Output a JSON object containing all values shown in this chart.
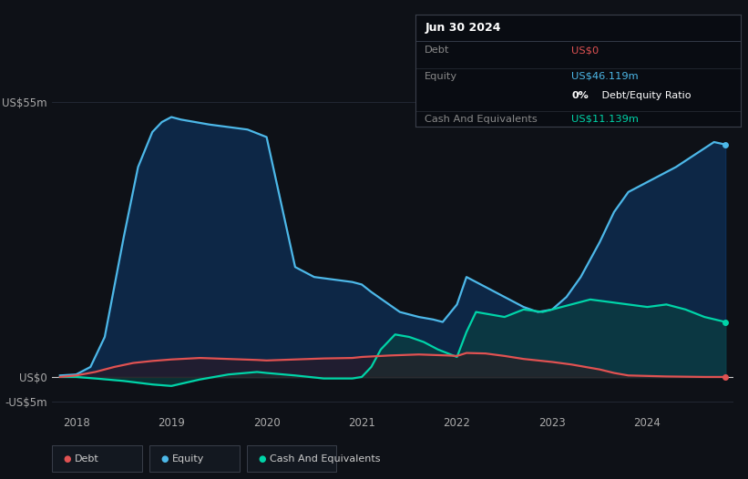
{
  "background_color": "#0e1117",
  "plot_bg_color": "#0e1117",
  "grid_color": "#252b38",
  "ylim": [
    -7,
    62
  ],
  "ytick_positions": [
    55,
    0,
    -5
  ],
  "ytick_labels": [
    "US$55m",
    "US$0",
    "-US$5m"
  ],
  "xticks": [
    2018,
    2019,
    2020,
    2021,
    2022,
    2023,
    2024
  ],
  "xlim_left": 2017.75,
  "xlim_right": 2024.9,
  "title_box": {
    "date": "Jun 30 2024",
    "debt_label": "Debt",
    "debt_value": "US$0",
    "debt_color": "#e05252",
    "equity_label": "Equity",
    "equity_value": "US$46.119m",
    "equity_color": "#4db8e8",
    "ratio_text": "0% Debt/Equity Ratio",
    "ratio_bold": "0%",
    "cash_label": "Cash And Equivalents",
    "cash_value": "US$11.139m",
    "cash_color": "#00d4a8",
    "box_bg": "#090c12",
    "text_color": "#888888",
    "title_text_color": "#ffffff"
  },
  "legend": {
    "debt_label": "Debt",
    "equity_label": "Equity",
    "cash_label": "Cash And Equivalents",
    "debt_color": "#e05252",
    "equity_color": "#4db8e8",
    "cash_color": "#00d4a8"
  },
  "equity_x": [
    2017.83,
    2018.0,
    2018.15,
    2018.3,
    2018.5,
    2018.65,
    2018.8,
    2018.9,
    2019.0,
    2019.1,
    2019.25,
    2019.4,
    2019.6,
    2019.8,
    2020.0,
    2020.15,
    2020.3,
    2020.5,
    2020.7,
    2020.9,
    2021.0,
    2021.1,
    2021.25,
    2021.4,
    2021.6,
    2021.75,
    2021.85,
    2022.0,
    2022.1,
    2022.2,
    2022.35,
    2022.5,
    2022.7,
    2022.85,
    2023.0,
    2023.15,
    2023.3,
    2023.5,
    2023.65,
    2023.8,
    2024.0,
    2024.15,
    2024.3,
    2024.5,
    2024.7,
    2024.82
  ],
  "equity_y": [
    0.3,
    0.5,
    2.0,
    8.0,
    28.0,
    42.0,
    49.0,
    51.0,
    52.0,
    51.5,
    51.0,
    50.5,
    50.0,
    49.5,
    48.0,
    35.0,
    22.0,
    20.0,
    19.5,
    19.0,
    18.5,
    17.0,
    15.0,
    13.0,
    12.0,
    11.5,
    11.0,
    14.5,
    20.0,
    19.0,
    17.5,
    16.0,
    14.0,
    13.0,
    13.5,
    16.0,
    20.0,
    27.0,
    33.0,
    37.0,
    39.0,
    40.5,
    42.0,
    44.5,
    47.0,
    46.5
  ],
  "cash_x": [
    2017.83,
    2018.0,
    2018.2,
    2018.5,
    2018.8,
    2019.0,
    2019.3,
    2019.6,
    2019.9,
    2020.0,
    2020.3,
    2020.6,
    2020.9,
    2021.0,
    2021.1,
    2021.2,
    2021.35,
    2021.5,
    2021.65,
    2021.8,
    2022.0,
    2022.1,
    2022.2,
    2022.35,
    2022.5,
    2022.7,
    2022.9,
    2023.0,
    2023.2,
    2023.4,
    2023.6,
    2023.8,
    2024.0,
    2024.2,
    2024.4,
    2024.6,
    2024.82
  ],
  "cash_y": [
    0.0,
    0.0,
    -0.3,
    -0.8,
    -1.5,
    -1.8,
    -0.5,
    0.5,
    1.0,
    0.8,
    0.3,
    -0.3,
    -0.3,
    0.0,
    2.0,
    5.5,
    8.5,
    8.0,
    7.0,
    5.5,
    4.0,
    9.0,
    13.0,
    12.5,
    12.0,
    13.5,
    13.0,
    13.5,
    14.5,
    15.5,
    15.0,
    14.5,
    14.0,
    14.5,
    13.5,
    12.0,
    11.0
  ],
  "debt_x": [
    2017.83,
    2018.0,
    2018.2,
    2018.4,
    2018.6,
    2018.8,
    2019.0,
    2019.3,
    2019.6,
    2019.9,
    2020.0,
    2020.3,
    2020.6,
    2020.9,
    2021.0,
    2021.3,
    2021.6,
    2021.9,
    2022.0,
    2022.1,
    2022.3,
    2022.5,
    2022.7,
    2022.9,
    2023.0,
    2023.2,
    2023.35,
    2023.5,
    2023.65,
    2023.8,
    2024.0,
    2024.2,
    2024.4,
    2024.6,
    2024.82
  ],
  "debt_y": [
    0.0,
    0.3,
    1.0,
    2.0,
    2.8,
    3.2,
    3.5,
    3.8,
    3.6,
    3.4,
    3.3,
    3.5,
    3.7,
    3.8,
    4.0,
    4.3,
    4.5,
    4.3,
    4.2,
    4.8,
    4.7,
    4.2,
    3.6,
    3.2,
    3.0,
    2.5,
    2.0,
    1.5,
    0.8,
    0.3,
    0.2,
    0.1,
    0.05,
    0.0,
    0.0
  ]
}
